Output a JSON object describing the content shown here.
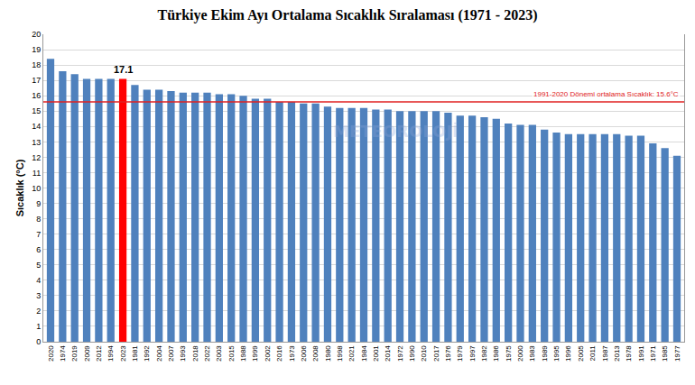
{
  "chart_data": {
    "type": "bar",
    "title": "Türkiye Ekim Ayı Ortalama Sıcaklık Sıralaması (1971 - 2023)",
    "y_label": "Sıcaklık (°C)",
    "categories": [
      "2020",
      "1974",
      "2019",
      "2009",
      "2012",
      "1994",
      "2023",
      "1981",
      "1992",
      "2004",
      "2007",
      "1993",
      "2018",
      "2022",
      "2003",
      "2015",
      "1988",
      "1999",
      "2002",
      "2016",
      "1973",
      "2006",
      "2008",
      "1980",
      "1998",
      "2021",
      "1984",
      "2001",
      "2014",
      "1972",
      "1990",
      "2010",
      "2017",
      "1976",
      "1979",
      "1997",
      "1982",
      "1986",
      "1975",
      "2000",
      "1983",
      "1989",
      "1995",
      "1996",
      "2005",
      "2011",
      "1987",
      "2013",
      "1978",
      "1991",
      "1971",
      "1985",
      "1977"
    ],
    "values": [
      18.4,
      17.6,
      17.4,
      17.1,
      17.1,
      17.1,
      17.1,
      16.7,
      16.4,
      16.4,
      16.3,
      16.2,
      16.2,
      16.2,
      16.1,
      16.1,
      16.0,
      15.8,
      15.8,
      15.6,
      15.6,
      15.5,
      15.5,
      15.3,
      15.2,
      15.2,
      15.2,
      15.1,
      15.1,
      15.0,
      15.0,
      15.0,
      15.0,
      14.9,
      14.7,
      14.7,
      14.6,
      14.5,
      14.2,
      14.1,
      14.1,
      13.8,
      13.6,
      13.5,
      13.5,
      13.5,
      13.5,
      13.5,
      13.4,
      13.4,
      12.9,
      12.6,
      12.1
    ],
    "colors": [
      "#4f81bd",
      "#4f81bd",
      "#4f81bd",
      "#4f81bd",
      "#4f81bd",
      "#4f81bd",
      "#ff0000",
      "#4f81bd",
      "#4f81bd",
      "#4f81bd",
      "#4f81bd",
      "#4f81bd",
      "#4f81bd",
      "#4f81bd",
      "#4f81bd",
      "#4f81bd",
      "#4f81bd",
      "#4f81bd",
      "#4f81bd",
      "#4f81bd",
      "#4f81bd",
      "#4f81bd",
      "#4f81bd",
      "#4f81bd",
      "#4f81bd",
      "#4f81bd",
      "#4f81bd",
      "#4f81bd",
      "#4f81bd",
      "#4f81bd",
      "#4f81bd",
      "#4f81bd",
      "#4f81bd",
      "#4f81bd",
      "#4f81bd",
      "#4f81bd",
      "#4f81bd",
      "#4f81bd",
      "#4f81bd",
      "#4f81bd",
      "#4f81bd",
      "#4f81bd",
      "#4f81bd",
      "#4f81bd",
      "#4f81bd",
      "#4f81bd",
      "#4f81bd",
      "#4f81bd",
      "#4f81bd",
      "#4f81bd",
      "#4f81bd",
      "#4f81bd",
      "#4f81bd"
    ],
    "ylim": [
      0,
      20
    ],
    "yticks": [
      0,
      1,
      2,
      3,
      4,
      5,
      6,
      7,
      8,
      9,
      10,
      11,
      12,
      13,
      14,
      15,
      16,
      17,
      18,
      19,
      20
    ],
    "grid": true,
    "annotations": [
      {
        "text": "17.1",
        "x": "2023",
        "y": 17.1
      }
    ],
    "reference_line": {
      "value": 15.6,
      "label": "1991-2020 Dönemi ortalama Sıcaklık: 15.6°C",
      "color": "#e02020"
    },
    "watermark": "METEOROLOJİ"
  }
}
